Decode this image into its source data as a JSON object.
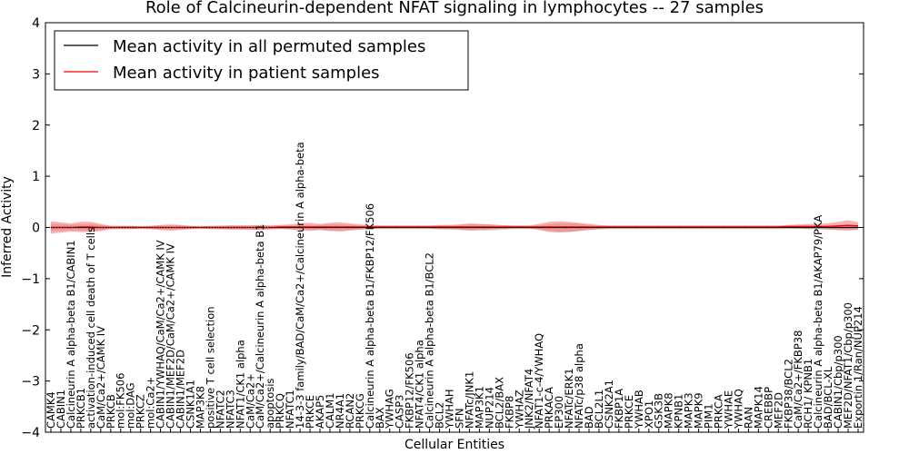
{
  "chart_data": {
    "type": "line",
    "title": "Role of Calcineurin-dependent NFAT signaling in lymphocytes -- 27 samples",
    "xlabel": "Cellular Entities",
    "ylabel": "Inferred Activity",
    "ylim": [
      -4,
      4
    ],
    "yticks": [
      "−4",
      "−3",
      "−2",
      "−1",
      "0",
      "1",
      "2",
      "3",
      "4"
    ],
    "legend_position": "top-left",
    "categories": [
      "CAMK4",
      "CABIN1",
      "Calcineurin A alpha-beta B1/CABIN1",
      "PRKCB1",
      "activation-induced cell death of T cells",
      "CaM/Ca2+/CAMK IV",
      "PRKCB",
      "mol:FK506",
      "mol:DAG",
      "PRKCZ",
      "mol:Ca2+",
      "CABIN1/YWHAQ/CaM/Ca2+/CAMK IV",
      "CABIN1/MEF2D/CaM/Ca2+/CAMK IV",
      "CABIN1/MEF2D",
      "CSNK1A1",
      "MAP3K8",
      "positive T cell selection",
      "NFATC2",
      "NFATC3",
      "NFAT1/CK1 alpha",
      "CaM/Ca2+",
      "CaM/Ca2+/Calcineurin A alpha-beta B1",
      "apoptosis",
      "PRKCQ",
      "NFATC1",
      "14-3-3 family/BAD/CaM/Ca2+/Calcineurin A alpha-beta",
      "PRKCE",
      "AKAP5",
      "CALM1",
      "NR4A1",
      "RCAN2",
      "PRKCG",
      "Calcineurin A alpha-beta B1/FKBP12/FK506",
      "BAX",
      "YWHAG",
      "CASP3",
      "FKBP12/FK506",
      "NFAT4/CK1 alpha",
      "Calcineurin A alpha-beta B1/BCL2",
      "BCL2",
      "YWHAH",
      "SFN",
      "NFATc/JNK1",
      "MAP3K1",
      "NUP214",
      "BCL2/BAX",
      "FKBP8",
      "YWHAZ",
      "JNK2/NFAT4",
      "NFAT1-c-4/YWHAQ",
      "PRKACA",
      "EP300",
      "NFATc/ERK1",
      "NFATc/p38 alpha",
      "BAD",
      "BCL2L1",
      "CSNK2A1",
      "FKBP1A",
      "PRKCE",
      "YWHAB",
      "XPO1",
      "GSK3B",
      "MAPK8",
      "KPNB1",
      "MAPK3",
      "MAPK9",
      "PIM1",
      "PRKCA",
      "YWHAE",
      "YWHAQ",
      "RAN",
      "MAPK14",
      "CREBBP",
      "MEF2D",
      "FKBP38/BCL2",
      "CaM/Ca2+/FKBP38",
      "RCH1/ KPNB1",
      "Calcineurin A alpha-beta B1/AKAP79/PKA",
      "BAD/BCL-XL",
      "CABIN1/Cbp/p300",
      "MEF2D/NFAT1/Cbp/p300",
      "Exportin 1/Ran/NUP214"
    ],
    "series": [
      {
        "name": "Mean activity in all permuted samples",
        "color": "#000000",
        "values": [
          0.0,
          0.0,
          0.0,
          0.0,
          0.0,
          0.0,
          0.0,
          0.0,
          0.0,
          0.0,
          0.0,
          0.0,
          0.0,
          0.0,
          0.0,
          0.0,
          0.0,
          0.0,
          0.0,
          0.0,
          0.0,
          0.0,
          0.0,
          0.0,
          0.0,
          0.0,
          0.0,
          0.0,
          0.0,
          0.0,
          0.0,
          0.0,
          0.0,
          0.0,
          0.0,
          0.0,
          0.0,
          0.0,
          0.0,
          0.0,
          0.0,
          0.0,
          0.0,
          0.0,
          0.0,
          0.0,
          0.0,
          0.0,
          0.0,
          0.0,
          0.0,
          0.0,
          0.0,
          0.0,
          0.0,
          0.0,
          0.0,
          0.0,
          0.0,
          0.0,
          0.0,
          0.0,
          0.0,
          0.0,
          0.0,
          0.0,
          0.0,
          0.0,
          0.0,
          0.0,
          0.0,
          0.0,
          0.0,
          0.0,
          0.0,
          0.0,
          0.0,
          0.0,
          0.0,
          0.0,
          0.0,
          0.0
        ],
        "band_half_width": [
          0.07,
          0.06,
          0.05,
          0.06,
          0.06,
          0.05,
          0.03,
          0.03,
          0.03,
          0.03,
          0.03,
          0.04,
          0.04,
          0.04,
          0.03,
          0.03,
          0.03,
          0.04,
          0.04,
          0.04,
          0.04,
          0.04,
          0.03,
          0.03,
          0.03,
          0.04,
          0.04,
          0.05,
          0.06,
          0.06,
          0.05,
          0.04,
          0.03,
          0.03,
          0.03,
          0.03,
          0.03,
          0.03,
          0.03,
          0.04,
          0.05,
          0.05,
          0.06,
          0.06,
          0.06,
          0.05,
          0.04,
          0.03,
          0.03,
          0.04,
          0.06,
          0.08,
          0.08,
          0.07,
          0.05,
          0.04,
          0.03,
          0.03,
          0.03,
          0.03,
          0.03,
          0.03,
          0.03,
          0.03,
          0.03,
          0.03,
          0.03,
          0.03,
          0.03,
          0.03,
          0.03,
          0.03,
          0.03,
          0.03,
          0.03,
          0.03,
          0.03,
          0.03,
          0.04,
          0.05,
          0.05,
          0.05
        ]
      },
      {
        "name": "Mean activity in patient samples",
        "color": "#ff0000",
        "values": [
          0.0,
          0.0,
          0.0,
          0.01,
          0.01,
          0.0,
          0.0,
          0.0,
          0.0,
          0.0,
          0.0,
          0.0,
          0.0,
          0.0,
          0.0,
          0.0,
          0.0,
          0.0,
          0.0,
          0.0,
          0.0,
          0.0,
          0.0,
          0.01,
          0.01,
          0.01,
          0.01,
          0.01,
          0.01,
          0.01,
          0.01,
          0.01,
          0.01,
          0.01,
          0.01,
          0.01,
          0.01,
          0.01,
          0.01,
          0.01,
          0.01,
          0.01,
          0.01,
          0.01,
          0.01,
          0.01,
          0.01,
          0.01,
          0.01,
          0.01,
          0.01,
          0.01,
          0.01,
          0.01,
          0.01,
          0.01,
          0.01,
          0.01,
          0.01,
          0.01,
          0.01,
          0.01,
          0.01,
          0.01,
          0.01,
          0.01,
          0.01,
          0.01,
          0.01,
          0.01,
          0.01,
          0.01,
          0.01,
          0.01,
          0.02,
          0.02,
          0.02,
          0.02,
          0.02,
          0.03,
          0.04,
          0.03
        ],
        "band_half_width": [
          0.12,
          0.1,
          0.08,
          0.1,
          0.1,
          0.07,
          0.03,
          0.03,
          0.03,
          0.02,
          0.03,
          0.05,
          0.06,
          0.05,
          0.03,
          0.02,
          0.03,
          0.03,
          0.04,
          0.04,
          0.04,
          0.05,
          0.04,
          0.04,
          0.05,
          0.07,
          0.08,
          0.06,
          0.08,
          0.09,
          0.07,
          0.05,
          0.04,
          0.03,
          0.03,
          0.03,
          0.03,
          0.03,
          0.03,
          0.04,
          0.04,
          0.05,
          0.07,
          0.06,
          0.05,
          0.04,
          0.03,
          0.03,
          0.03,
          0.06,
          0.1,
          0.11,
          0.1,
          0.08,
          0.06,
          0.04,
          0.03,
          0.03,
          0.03,
          0.03,
          0.03,
          0.03,
          0.03,
          0.03,
          0.03,
          0.03,
          0.03,
          0.03,
          0.03,
          0.03,
          0.03,
          0.03,
          0.03,
          0.03,
          0.03,
          0.04,
          0.05,
          0.05,
          0.06,
          0.08,
          0.1,
          0.07
        ]
      }
    ],
    "zero_reference_line": "dotted"
  }
}
